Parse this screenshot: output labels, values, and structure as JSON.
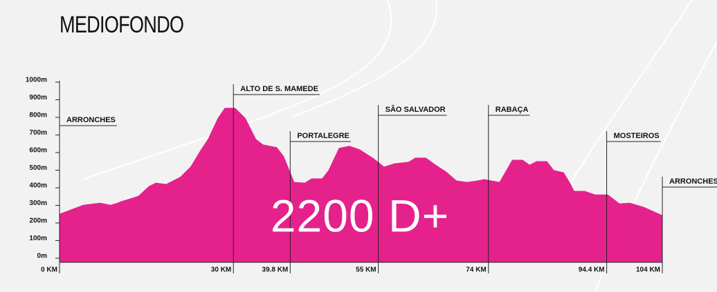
{
  "chart_data": {
    "type": "area",
    "title": "MEDIOFONDO",
    "annotation": "2200 D+",
    "color": "#e5218c",
    "x": [
      0,
      4.1,
      7,
      8.8,
      10,
      10.6,
      11.8,
      13.6,
      15.4,
      16.6,
      18.4,
      20.8,
      22.6,
      24.4,
      25.6,
      27.3,
      28.5,
      30.3,
      32.1,
      33.9,
      35.1,
      37.5,
      38.7,
      40.5,
      42.3,
      43.5,
      45.3,
      46.4,
      48.2,
      50,
      51.8,
      54.2,
      56,
      57.8,
      60.2,
      61.4,
      63.2,
      64.9,
      66.7,
      68.5,
      70.3,
      72.1,
      73.3,
      74.5,
      75.9,
      78.1,
      79.9,
      81.1,
      82.3,
      84.1,
      85.3,
      87,
      88.2,
      88.8,
      90.6,
      92.4,
      94.6,
      96.6,
      98.4,
      100.8,
      104
    ],
    "values": [
      252,
      303,
      315,
      303,
      315,
      323,
      335,
      354,
      409,
      429,
      421,
      461,
      520,
      618,
      677,
      795,
      854,
      854,
      795,
      677,
      646,
      630,
      579,
      433,
      429,
      453,
      453,
      500,
      626,
      638,
      618,
      567,
      520,
      539,
      547,
      571,
      571,
      531,
      492,
      441,
      433,
      441,
      449,
      441,
      433,
      559,
      559,
      531,
      551,
      551,
      500,
      488,
      421,
      382,
      382,
      362,
      362,
      311,
      315,
      291,
      244
    ],
    "xlim": [
      0,
      104
    ],
    "ylim": [
      0,
      1000
    ],
    "xticks": [
      {
        "value": 0,
        "label": "0 KM"
      },
      {
        "value": 30,
        "label": "30 KM"
      },
      {
        "value": 39.8,
        "label": "39.8 KM"
      },
      {
        "value": 55,
        "label": "55 KM"
      },
      {
        "value": 74,
        "label": "74 KM"
      },
      {
        "value": 94.4,
        "label": "94.4 KM"
      },
      {
        "value": 104,
        "label": "104 KM"
      }
    ],
    "yticks": [
      {
        "value": 0,
        "label": "0m"
      },
      {
        "value": 100,
        "label": "100m"
      },
      {
        "value": 200,
        "label": "200m"
      },
      {
        "value": 300,
        "label": "300m"
      },
      {
        "value": 400,
        "label": "400m"
      },
      {
        "value": 500,
        "label": "500m"
      },
      {
        "value": 600,
        "label": "600m"
      },
      {
        "value": 700,
        "label": "700m"
      },
      {
        "value": 800,
        "label": "800m"
      },
      {
        "value": 900,
        "label": "900m"
      },
      {
        "value": 1000,
        "label": "1000m"
      }
    ],
    "waypoints": [
      {
        "name": "ARRONCHES",
        "x": 0
      },
      {
        "name": "ALTO DE S. MAMEDE",
        "x": 30
      },
      {
        "name": "PORTALEGRE",
        "x": 39.8
      },
      {
        "name": "SÃO SALVADOR",
        "x": 55
      },
      {
        "name": "RABAÇA",
        "x": 74
      },
      {
        "name": "MOSTEIROS",
        "x": 94.4
      },
      {
        "name": "ARRONCHES",
        "x": 104
      }
    ]
  }
}
